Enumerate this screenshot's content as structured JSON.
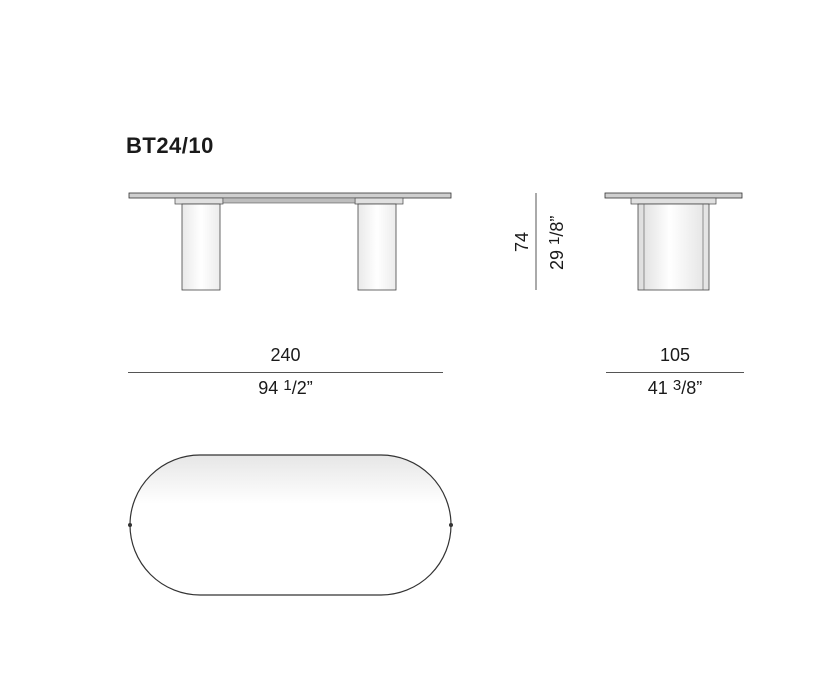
{
  "model_code": "BT24/10",
  "dimensions": {
    "length": {
      "cm": "240",
      "in_whole": "94",
      "in_num": "1",
      "in_den": "/2”"
    },
    "width": {
      "cm": "105",
      "in_whole": "41",
      "in_num": "3",
      "in_den": "/8”"
    },
    "height": {
      "cm": "74",
      "in_whole": "29",
      "in_num": "1",
      "in_den": "/8”"
    }
  }
}
